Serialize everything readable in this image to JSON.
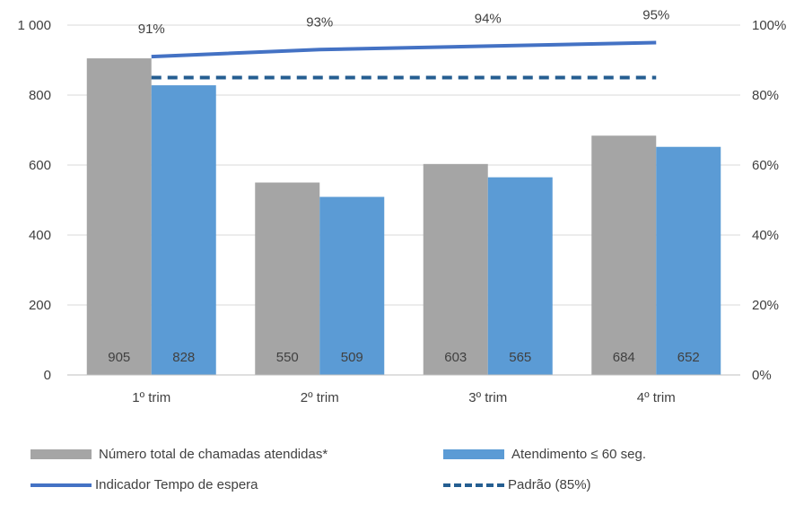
{
  "chart_data": {
    "type": "bar",
    "categories": [
      "1º trim",
      "2º trim",
      "3º trim",
      "4º trim"
    ],
    "series": [
      {
        "name": "Número total de chamadas atendidas*",
        "type": "bar",
        "axis": "left",
        "color": "#a5a5a5",
        "values": [
          905,
          550,
          603,
          684
        ]
      },
      {
        "name": "Atendimento ≤ 60 seg.",
        "type": "bar",
        "axis": "left",
        "color": "#5b9bd5",
        "values": [
          828,
          509,
          565,
          652
        ]
      },
      {
        "name": "Indicador Tempo de espera",
        "type": "line",
        "axis": "right",
        "color": "#4472c4",
        "values": [
          0.91,
          0.93,
          0.94,
          0.95
        ],
        "labels": [
          "91%",
          "93%",
          "94%",
          "95%"
        ]
      },
      {
        "name": "Padrão (85%)",
        "type": "line",
        "style": "dashed",
        "axis": "right",
        "color": "#255e91",
        "values": [
          0.85,
          0.85,
          0.85,
          0.85
        ]
      }
    ],
    "yaxis_left": {
      "min": 0,
      "max": 1000,
      "ticks": [
        "0",
        "200",
        "400",
        "600",
        "800",
        "1 000"
      ]
    },
    "yaxis_right": {
      "min": 0,
      "max": 1,
      "ticks": [
        "0%",
        "20%",
        "40%",
        "60%",
        "80%",
        "100%"
      ]
    },
    "legend_position": "bottom"
  }
}
